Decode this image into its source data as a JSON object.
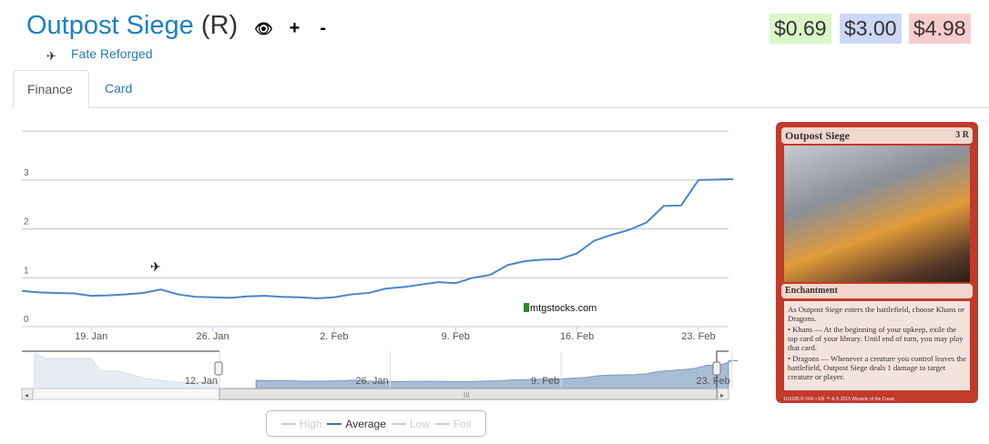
{
  "header": {
    "card_name": "Outpost Siege",
    "rarity": "(R)",
    "icons": [
      "eye-icon",
      "plus-icon",
      "minus-icon"
    ],
    "set_name": "Fate Reforged",
    "prices": [
      {
        "label": "$0.69",
        "bg": "#d9f7c9"
      },
      {
        "label": "$3.00",
        "bg": "#cdd8f5"
      },
      {
        "label": "$4.98",
        "bg": "#f8cccc"
      }
    ]
  },
  "tabs": [
    {
      "label": "Finance"
    },
    {
      "label": "Card"
    }
  ],
  "watermark": "mtgstocks.com",
  "chart_data": {
    "type": "line",
    "series": [
      {
        "name": "Average",
        "color": "#4a86c8",
        "x": [
          "15 Jan",
          "16 Jan",
          "17 Jan",
          "18 Jan",
          "19 Jan",
          "20 Jan",
          "21 Jan",
          "22 Jan",
          "23 Jan",
          "24 Jan",
          "25 Jan",
          "26 Jan",
          "27 Jan",
          "28 Jan",
          "29 Jan",
          "30 Jan",
          "31 Jan",
          "1 Feb",
          "2 Feb",
          "3 Feb",
          "4 Feb",
          "5 Feb",
          "6 Feb",
          "7 Feb",
          "8 Feb",
          "9 Feb",
          "10 Feb",
          "11 Feb",
          "12 Feb",
          "13 Feb",
          "14 Feb",
          "15 Feb",
          "16 Feb",
          "17 Feb",
          "18 Feb",
          "19 Feb",
          "20 Feb",
          "21 Feb",
          "22 Feb",
          "23 Feb",
          "24 Feb",
          "25 Feb"
        ],
        "values": [
          0.73,
          0.7,
          0.69,
          0.68,
          0.63,
          0.64,
          0.66,
          0.69,
          0.76,
          0.66,
          0.61,
          0.6,
          0.59,
          0.62,
          0.63,
          0.61,
          0.6,
          0.58,
          0.6,
          0.66,
          0.69,
          0.78,
          0.81,
          0.86,
          0.91,
          0.89,
          1.0,
          1.06,
          1.26,
          1.34,
          1.37,
          1.38,
          1.5,
          1.76,
          1.88,
          1.98,
          2.13,
          2.47,
          2.48,
          3.0,
          3.01,
          3.02
        ]
      }
    ],
    "ylim": [
      0,
      4
    ],
    "yticks": [
      "0",
      "1",
      "2",
      "3"
    ],
    "xticks": [
      "19. Jan",
      "26. Jan",
      "2. Feb",
      "9. Feb",
      "16. Feb",
      "23. Feb"
    ],
    "navigator_ticks": [
      "12. Jan",
      "26. Jan",
      "9. Feb",
      "23. Feb"
    ],
    "legend": [
      {
        "label": "High",
        "active": false
      },
      {
        "label": "Average",
        "active": true
      },
      {
        "label": "Low",
        "active": false
      },
      {
        "label": "Foil",
        "active": false
      }
    ],
    "legend_position": "bottom-center"
  },
  "card_image": {
    "name": "Outpost Siege",
    "cost": "3 R",
    "type": "Enchantment",
    "text": [
      "As Outpost Siege enters the battlefield, choose Khans or Dragons.",
      "• Khans — At the beginning of your upkeep, exile the top card of your library. Until end of turn, you may play that card.",
      "• Dragons — Whenever a creature you control leaves the battlefield, Outpost Siege deals 1 damage to target creature or player."
    ],
    "footer": "110/185 R  FRF • EN  ™ & © 2015 Wizards of the Coast"
  }
}
